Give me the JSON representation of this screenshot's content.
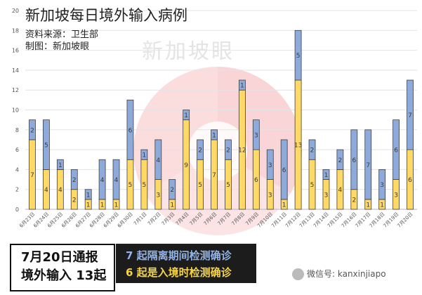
{
  "header": {
    "title": "新加坡每日境外输入病例",
    "source": "资料来源：卫生部",
    "maker": "制图：新加坡眼"
  },
  "watermark": {
    "text": "新加坡眼"
  },
  "summary": {
    "line1": "7月20日通报",
    "line2": "境外输入 13起",
    "detail1": "7 起隔离期间检测确诊",
    "detail2": "6 起是入境时检测确诊"
  },
  "footer": {
    "wechat": "微信号: kanxinjiapo"
  },
  "colors": {
    "blue": "#8eaadb",
    "yellow": "#ffd965",
    "accent_red": "#e8404a"
  },
  "chart_data": {
    "type": "bar",
    "stacked": true,
    "categories": [
      "6月23日",
      "6月24日",
      "6月25日",
      "6月26日",
      "6月27日",
      "6月28日",
      "6月29日",
      "6月30日",
      "7月1日",
      "7月2日",
      "7月3日",
      "7月4日",
      "7月5日",
      "7月6日",
      "7月7日",
      "7月8日",
      "7月9日",
      "7月10日",
      "7月11日",
      "7月12日",
      "7月13日",
      "7月14日",
      "7月15日",
      "7月16日",
      "7月17日",
      "7月18日",
      "7月19日",
      "7月20日"
    ],
    "series": [
      {
        "values": [
          7,
          4,
          4,
          2,
          1,
          1,
          1,
          5,
          5,
          3,
          1,
          9,
          5,
          7,
          5,
          12,
          6,
          3,
          1,
          13,
          5,
          3,
          4,
          2,
          1,
          1,
          3,
          6
        ],
        "color": "#ffd965"
      },
      {
        "values": [
          2,
          5,
          1,
          2,
          1,
          4,
          4,
          6,
          1,
          4,
          2,
          1,
          2,
          1,
          2,
          1,
          3,
          3,
          6,
          5,
          2,
          1,
          2,
          6,
          7,
          3,
          6,
          7
        ],
        "color": "#8eaadb"
      }
    ],
    "ylim": [
      0,
      20
    ],
    "yticks": [
      0,
      2,
      4,
      6,
      8,
      10,
      12,
      14,
      16,
      18,
      20
    ],
    "grid": true
  }
}
